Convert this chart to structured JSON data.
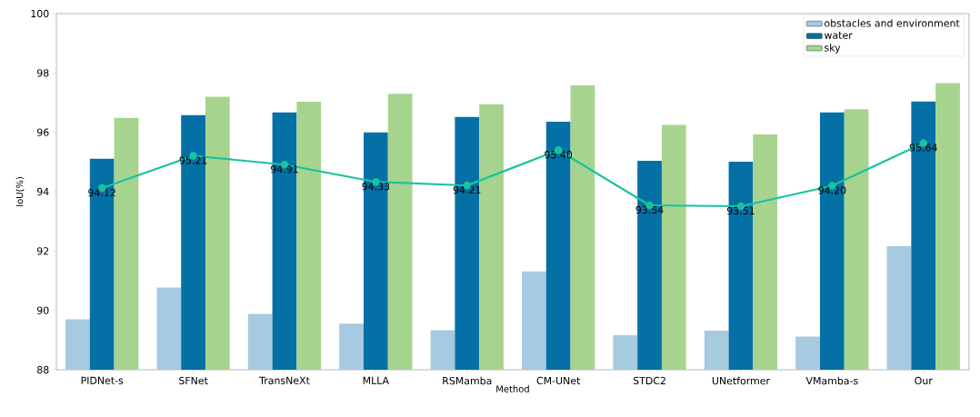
{
  "chart_data": {
    "type": "bar",
    "xlabel": "Method",
    "ylabel": "IoU(%)",
    "categories": [
      "PIDNet-s",
      "SFNet",
      "TransNeXt",
      "MLLA",
      "RSMamba",
      "CM-UNet",
      "STDC2",
      "UNetformer",
      "VMamba-s",
      "Our"
    ],
    "series": [
      {
        "name": "obstacles and environment",
        "color": "#a6cae0",
        "values": [
          89.7,
          90.77,
          89.88,
          89.55,
          89.33,
          91.31,
          89.16,
          89.32,
          89.12,
          92.16
        ]
      },
      {
        "name": "water",
        "color": "#0570a5",
        "values": [
          95.11,
          96.58,
          96.67,
          96.0,
          96.52,
          96.36,
          95.04,
          95.01,
          96.67,
          97.04
        ]
      },
      {
        "name": "sky",
        "color": "#a6d48f",
        "values": [
          96.49,
          97.2,
          97.03,
          97.3,
          96.95,
          97.58,
          96.25,
          95.93,
          96.78,
          97.66
        ]
      },
      {
        "type": "line",
        "color": "#17c3a0",
        "marker": "circle",
        "values": [
          94.12,
          95.21,
          94.91,
          94.33,
          94.21,
          95.4,
          93.54,
          93.51,
          94.2,
          95.64
        ],
        "value_labels": [
          "94.12",
          "95.21",
          "94.91",
          "94.33",
          "94.21",
          "95.40",
          "93.54",
          "93.51",
          "94.20",
          "95.64"
        ]
      }
    ],
    "ylim": [
      88,
      100
    ],
    "yticks": [
      88,
      90,
      92,
      94,
      96,
      98,
      100
    ],
    "legend": "top right",
    "grid": false
  }
}
